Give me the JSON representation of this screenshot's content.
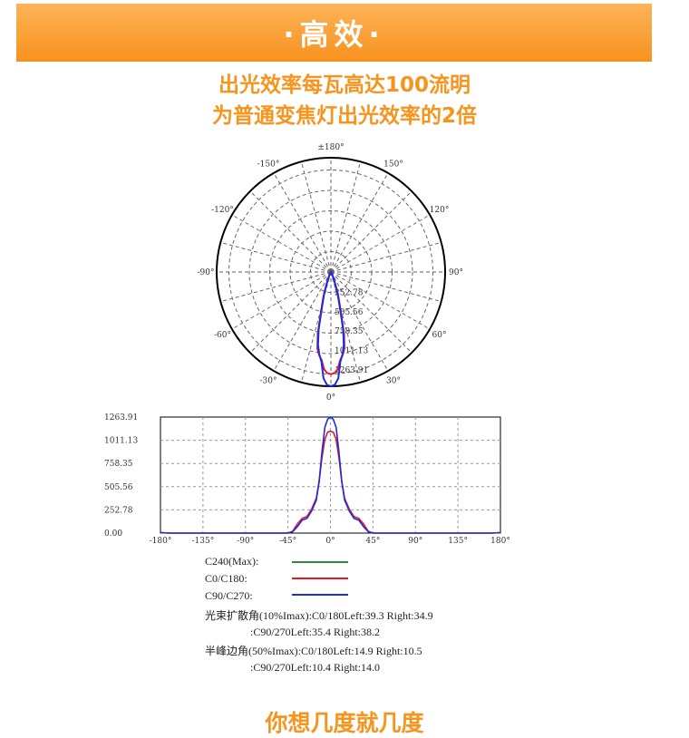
{
  "banner": {
    "title": "·高效·"
  },
  "headline": {
    "line1": "出光效率每瓦高达100流明",
    "line2": "为普通变焦灯出光效率的2倍"
  },
  "colors": {
    "accent": "#f7941d",
    "series_c240": "#2e8b2e",
    "series_c0": "#e8142a",
    "series_c90": "#1a2ee0"
  },
  "chart_data": [
    {
      "type": "polar",
      "angle_labels": [
        "±180°",
        "150°",
        "120°",
        "90°",
        "60°",
        "30°",
        "0°",
        "-30°",
        "-60°",
        "-90°",
        "-120°",
        "-150°"
      ],
      "radial_labels": [
        "252.78",
        "505.56",
        "758.35",
        "1011.13",
        "1263.91"
      ],
      "rmax": 1263.91,
      "series": [
        {
          "name": "C0/C180",
          "angles": [
            -30,
            -25,
            -20,
            -17,
            -14,
            -12,
            -10,
            -8,
            -6,
            -4,
            -2,
            0,
            2,
            4,
            6,
            8,
            10,
            12,
            14,
            17,
            20,
            25,
            30
          ],
          "values": [
            0,
            40,
            150,
            280,
            450,
            700,
            860,
            930,
            980,
            1080,
            1120,
            1130,
            1120,
            1080,
            980,
            930,
            860,
            700,
            450,
            280,
            150,
            40,
            0
          ]
        },
        {
          "name": "C90/C270",
          "angles": [
            -30,
            -25,
            -20,
            -17,
            -14,
            -12,
            -10,
            -8,
            -6,
            -4,
            -2,
            0,
            2,
            4,
            6,
            8,
            10,
            12,
            14,
            17,
            20,
            25,
            30
          ],
          "values": [
            0,
            40,
            130,
            260,
            420,
            650,
            820,
            920,
            1000,
            1180,
            1250,
            1263.91,
            1250,
            1180,
            1000,
            920,
            820,
            650,
            420,
            260,
            130,
            40,
            0
          ]
        }
      ]
    },
    {
      "type": "line",
      "x_ticks": [
        "-180°",
        "-135°",
        "-90°",
        "-45°",
        "0°",
        "45°",
        "90°",
        "135°",
        "180°"
      ],
      "y_ticks": [
        "0.00",
        "252.78",
        "505.56",
        "758.35",
        "1011.13",
        "1263.91"
      ],
      "xlim": [
        -180,
        180
      ],
      "ylim": [
        0,
        1263.91
      ],
      "grid": true,
      "series": [
        {
          "name": "C0/C180",
          "x": [
            -180,
            -170,
            -60,
            -45,
            -40,
            -35,
            -30,
            -25,
            -20,
            -15,
            -12,
            -9,
            -6,
            -3,
            0,
            3,
            6,
            9,
            12,
            15,
            20,
            25,
            30,
            35,
            40,
            45,
            60,
            170,
            180
          ],
          "y": [
            5,
            0,
            0,
            0,
            20,
            100,
            160,
            180,
            260,
            380,
            560,
            820,
            1020,
            1100,
            1110,
            1100,
            1020,
            820,
            560,
            380,
            260,
            180,
            160,
            100,
            20,
            0,
            0,
            0,
            5
          ]
        },
        {
          "name": "C90/C270",
          "x": [
            -180,
            -170,
            -60,
            -45,
            -40,
            -35,
            -30,
            -25,
            -20,
            -15,
            -12,
            -9,
            -6,
            -3,
            0,
            3,
            6,
            9,
            12,
            15,
            20,
            25,
            30,
            35,
            40,
            45,
            60,
            170,
            180
          ],
          "y": [
            5,
            0,
            0,
            0,
            15,
            70,
            140,
            160,
            240,
            360,
            560,
            880,
            1150,
            1240,
            1263.91,
            1240,
            1150,
            880,
            560,
            360,
            240,
            160,
            140,
            70,
            15,
            0,
            0,
            0,
            5
          ]
        }
      ]
    }
  ],
  "legend": {
    "items": [
      {
        "label": "C240(Max):",
        "color": "#2e8b2e"
      },
      {
        "label": "C0/C180:",
        "color": "#e8142a"
      },
      {
        "label": "C90/C270:",
        "color": "#1a2ee0"
      }
    ]
  },
  "stats": {
    "beam_line1": "光束扩散角(10%Imax):C0/180Left:39.3 Right:34.9",
    "beam_line2": ":C90/270Left:35.4 Right:38.2",
    "half_line1": "半峰边角(50%Imax):C0/180Left:14.9 Right:10.5",
    "half_line2": ":C90/270Left:10.4 Right:14.0"
  },
  "footer": {
    "text": "你想几度就几度"
  }
}
